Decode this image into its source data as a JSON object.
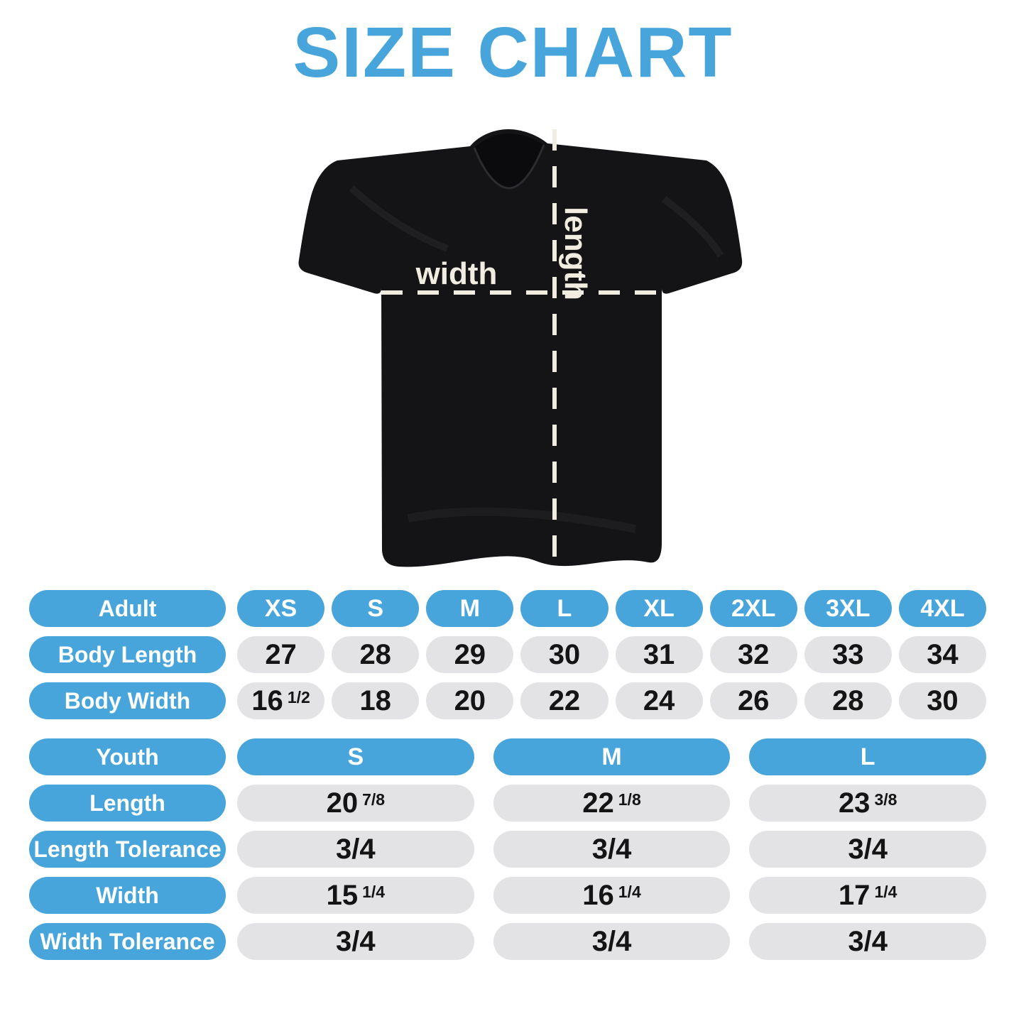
{
  "title": "SIZE CHART",
  "colors": {
    "accent_blue": "#47A5DB",
    "pill_gray": "#E3E3E5",
    "value_text": "#141414",
    "tee_black": "#141416",
    "measure_cream": "#F1ECE0"
  },
  "diagram": {
    "width_label": "width",
    "length_label": "length"
  },
  "adult_table": {
    "header_label": "Adult",
    "sizes": [
      "XS",
      "S",
      "M",
      "L",
      "XL",
      "2XL",
      "3XL",
      "4XL"
    ],
    "rows": [
      {
        "label": "Body Length",
        "values": [
          {
            "n": "27"
          },
          {
            "n": "28"
          },
          {
            "n": "29"
          },
          {
            "n": "30"
          },
          {
            "n": "31"
          },
          {
            "n": "32"
          },
          {
            "n": "33"
          },
          {
            "n": "34"
          }
        ]
      },
      {
        "label": "Body Width",
        "values": [
          {
            "n": "16",
            "f": "1/2"
          },
          {
            "n": "18"
          },
          {
            "n": "20"
          },
          {
            "n": "22"
          },
          {
            "n": "24"
          },
          {
            "n": "26"
          },
          {
            "n": "28"
          },
          {
            "n": "30"
          }
        ]
      }
    ]
  },
  "youth_table": {
    "header_label": "Youth",
    "sizes": [
      "S",
      "M",
      "L"
    ],
    "rows": [
      {
        "label": "Length",
        "values": [
          {
            "n": "20",
            "f": "7/8"
          },
          {
            "n": "22",
            "f": "1/8"
          },
          {
            "n": "23",
            "f": "3/8"
          }
        ]
      },
      {
        "label": "Length Tolerance",
        "values": [
          {
            "n": "3/4"
          },
          {
            "n": "3/4"
          },
          {
            "n": "3/4"
          }
        ]
      },
      {
        "label": "Width",
        "values": [
          {
            "n": "15",
            "f": "1/4"
          },
          {
            "n": "16",
            "f": "1/4"
          },
          {
            "n": "17",
            "f": "1/4"
          }
        ]
      },
      {
        "label": "Width Tolerance",
        "values": [
          {
            "n": "3/4"
          },
          {
            "n": "3/4"
          },
          {
            "n": "3/4"
          }
        ]
      }
    ]
  },
  "chart_data": [
    {
      "type": "table",
      "title": "Adult",
      "columns": [
        "Adult",
        "XS",
        "S",
        "M",
        "L",
        "XL",
        "2XL",
        "3XL",
        "4XL"
      ],
      "rows": [
        [
          "Body Length",
          "27",
          "28",
          "29",
          "30",
          "31",
          "32",
          "33",
          "34"
        ],
        [
          "Body Width",
          "16 1/2",
          "18",
          "20",
          "22",
          "24",
          "26",
          "28",
          "30"
        ]
      ]
    },
    {
      "type": "table",
      "title": "Youth",
      "columns": [
        "Youth",
        "S",
        "M",
        "L"
      ],
      "rows": [
        [
          "Length",
          "20 7/8",
          "22 1/8",
          "23 3/8"
        ],
        [
          "Length Tolerance",
          "3/4",
          "3/4",
          "3/4"
        ],
        [
          "Width",
          "15 1/4",
          "16 1/4",
          "17 1/4"
        ],
        [
          "Width Tolerance",
          "3/4",
          "3/4",
          "3/4"
        ]
      ]
    }
  ]
}
